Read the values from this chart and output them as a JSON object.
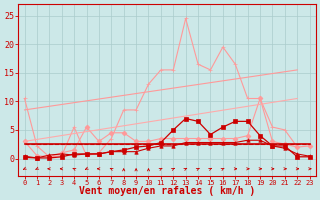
{
  "background_color": "#cce8e8",
  "grid_color": "#aacccc",
  "xlabel": "Vent moyen/en rafales ( km/h )",
  "xlabel_color": "#cc0000",
  "xlabel_fontsize": 7,
  "xtick_labels": [
    "0",
    "1",
    "2",
    "3",
    "4",
    "5",
    "6",
    "7",
    "8",
    "9",
    "10",
    "11",
    "12",
    "13",
    "14",
    "15",
    "16",
    "17",
    "18",
    "19",
    "20",
    "21",
    "22",
    "23"
  ],
  "ytick_labels": [
    0,
    5,
    10,
    15,
    20,
    25
  ],
  "ylim": [
    0,
    27
  ],
  "xlim": [
    -0.5,
    23.5
  ],
  "series": [
    {
      "name": "line_peak_light",
      "x": [
        0,
        1,
        2,
        3,
        4,
        5,
        6,
        7,
        8,
        9,
        10,
        11,
        12,
        13,
        14,
        15,
        16,
        17,
        18,
        19,
        20,
        21,
        22
      ],
      "y": [
        10.5,
        2.2,
        0.3,
        0.5,
        5.5,
        0.5,
        1.0,
        3.5,
        8.5,
        8.5,
        13.0,
        15.5,
        15.5,
        24.5,
        16.5,
        15.5,
        19.5,
        16.5,
        10.5,
        10.5,
        5.5,
        5.0,
        2.0
      ],
      "color": "#ff9999",
      "linewidth": 0.8,
      "marker": "+",
      "markersize": 3,
      "linestyle": "-"
    },
    {
      "name": "line_diagonal_light",
      "x": [
        0,
        22
      ],
      "y": [
        8.5,
        15.5
      ],
      "color": "#ff9999",
      "linewidth": 0.8,
      "marker": null,
      "markersize": 0,
      "linestyle": "-"
    },
    {
      "name": "line_medium_light",
      "x": [
        0,
        1,
        2,
        3,
        4,
        5,
        6,
        7,
        8,
        9,
        10,
        11,
        12,
        13,
        14,
        15,
        16,
        17,
        18,
        19,
        20,
        21,
        22,
        23
      ],
      "y": [
        3.0,
        0.5,
        0.3,
        1.0,
        1.5,
        5.5,
        3.0,
        4.5,
        4.5,
        3.0,
        3.0,
        3.5,
        3.5,
        3.5,
        3.5,
        3.5,
        3.5,
        3.5,
        4.0,
        10.5,
        3.0,
        2.5,
        2.0,
        2.2
      ],
      "color": "#ff9999",
      "linewidth": 0.8,
      "marker": "D",
      "markersize": 2.5,
      "linestyle": "-"
    },
    {
      "name": "line_diagonal2_light",
      "x": [
        0,
        22
      ],
      "y": [
        3.0,
        10.5
      ],
      "color": "#ffaaaa",
      "linewidth": 0.8,
      "marker": null,
      "markersize": 0,
      "linestyle": "-"
    },
    {
      "name": "line_red_flat",
      "x": [
        0,
        23
      ],
      "y": [
        2.5,
        2.5
      ],
      "color": "#cc0000",
      "linewidth": 1.2,
      "marker": null,
      "markersize": 0,
      "linestyle": "-"
    },
    {
      "name": "line_red_main",
      "x": [
        0,
        1,
        2,
        3,
        4,
        5,
        6,
        7,
        8,
        9,
        10,
        11,
        12,
        13,
        14,
        15,
        16,
        17,
        18,
        19,
        20,
        21,
        22,
        23
      ],
      "y": [
        0.2,
        0.1,
        0.1,
        0.3,
        0.8,
        0.8,
        0.8,
        1.2,
        1.5,
        2.0,
        2.2,
        2.8,
        5.0,
        7.0,
        6.5,
        4.2,
        5.5,
        6.5,
        6.5,
        4.0,
        2.2,
        2.2,
        0.3,
        0.3
      ],
      "color": "#cc0000",
      "linewidth": 0.9,
      "marker": "s",
      "markersize": 2.5,
      "linestyle": "-"
    },
    {
      "name": "line_red_dashed",
      "x": [
        0,
        1,
        2,
        3,
        4,
        5,
        6,
        7,
        8,
        9,
        10,
        11,
        12,
        13,
        14,
        15,
        16,
        17,
        18,
        19,
        20,
        21,
        22,
        23
      ],
      "y": [
        2.5,
        2.5,
        2.5,
        2.5,
        2.5,
        2.5,
        2.5,
        2.5,
        2.5,
        2.5,
        2.5,
        2.5,
        2.5,
        2.5,
        2.5,
        2.5,
        2.5,
        2.5,
        2.5,
        2.5,
        2.5,
        2.5,
        2.5,
        2.5
      ],
      "color": "#cc0000",
      "linewidth": 0.8,
      "marker": null,
      "markersize": 0,
      "linestyle": "--"
    },
    {
      "name": "line_red_triangles",
      "x": [
        0,
        1,
        2,
        3,
        4,
        5,
        6,
        7,
        8,
        9,
        10,
        11,
        12,
        13,
        14,
        15,
        16,
        17,
        18,
        19,
        20,
        21,
        22,
        23
      ],
      "y": [
        0.4,
        0.1,
        0.6,
        0.8,
        0.6,
        0.8,
        0.8,
        1.2,
        1.2,
        1.2,
        1.8,
        2.2,
        2.2,
        2.8,
        2.8,
        2.8,
        2.8,
        2.8,
        3.2,
        3.2,
        2.2,
        1.8,
        0.8,
        0.4
      ],
      "color": "#cc0000",
      "linewidth": 0.8,
      "marker": "^",
      "markersize": 2.5,
      "linestyle": "-"
    }
  ],
  "wind_directions": [
    225,
    225,
    270,
    270,
    315,
    225,
    270,
    315,
    0,
    0,
    0,
    45,
    45,
    45,
    45,
    45,
    45,
    90,
    90,
    90,
    90,
    90,
    90,
    90
  ],
  "arrow_color": "#cc0000"
}
